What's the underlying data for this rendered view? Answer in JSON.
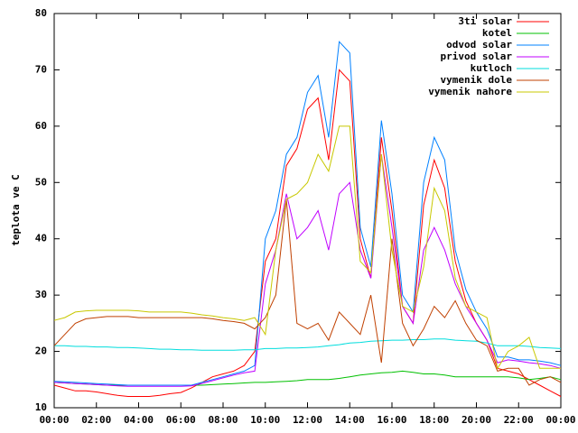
{
  "chart_data": {
    "type": "line",
    "ylabel": "teplota ve C",
    "x": [
      0,
      0.5,
      1,
      1.5,
      2,
      2.5,
      3,
      3.5,
      4,
      4.5,
      5,
      5.5,
      6,
      6.5,
      7,
      7.5,
      8,
      8.5,
      9,
      9.5,
      10,
      10.5,
      11,
      11.5,
      12,
      12.5,
      13,
      13.5,
      14,
      14.5,
      15,
      15.5,
      16,
      16.5,
      17,
      17.5,
      18,
      18.5,
      19,
      19.5,
      20,
      20.5,
      21,
      21.5,
      22,
      22.5,
      23,
      23.5,
      24
    ],
    "xlim": [
      0,
      24
    ],
    "xticks": [
      {
        "value": 0,
        "label": "00:00"
      },
      {
        "value": 2,
        "label": "02:00"
      },
      {
        "value": 4,
        "label": "04:00"
      },
      {
        "value": 6,
        "label": "06:00"
      },
      {
        "value": 8,
        "label": "08:00"
      },
      {
        "value": 10,
        "label": "10:00"
      },
      {
        "value": 12,
        "label": "12:00"
      },
      {
        "value": 14,
        "label": "14:00"
      },
      {
        "value": 16,
        "label": "16:00"
      },
      {
        "value": 18,
        "label": "18:00"
      },
      {
        "value": 20,
        "label": "20:00"
      },
      {
        "value": 22,
        "label": "22:00"
      },
      {
        "value": 24,
        "label": "00:00"
      }
    ],
    "ylim": [
      10,
      80
    ],
    "yticks": [
      10,
      20,
      30,
      40,
      50,
      60,
      70,
      80
    ],
    "legend": "top-right",
    "series": [
      {
        "name": "3ti solar",
        "color": "#ff0000",
        "values": [
          14,
          13.5,
          13,
          13,
          12.8,
          12.5,
          12.2,
          12,
          12,
          12,
          12.2,
          12.5,
          12.7,
          13.5,
          14.5,
          15.5,
          16,
          16.5,
          17.5,
          20,
          36,
          40,
          53,
          56,
          63,
          65,
          54,
          70,
          68,
          40,
          33,
          58,
          45,
          28,
          25,
          46,
          54,
          49,
          36,
          29,
          25,
          22,
          17,
          16.5,
          16,
          15,
          14,
          13,
          12
        ]
      },
      {
        "name": "kotel",
        "color": "#00c000",
        "values": [
          14.5,
          14.4,
          14.3,
          14.2,
          14.1,
          14,
          14,
          14,
          14,
          14,
          14,
          14,
          14,
          14,
          14,
          14.1,
          14.2,
          14.3,
          14.4,
          14.5,
          14.5,
          14.6,
          14.7,
          14.8,
          15,
          15,
          15,
          15.2,
          15.5,
          15.8,
          16,
          16.2,
          16.3,
          16.5,
          16.3,
          16,
          16,
          15.8,
          15.5,
          15.5,
          15.5,
          15.5,
          15.5,
          15.5,
          15.3,
          15,
          15.2,
          15.5,
          15
        ]
      },
      {
        "name": "odvod solar",
        "color": "#0080ff",
        "values": [
          14.7,
          14.6,
          14.5,
          14.4,
          14.3,
          14.2,
          14.1,
          14,
          14,
          14,
          14,
          14,
          14,
          14,
          14.5,
          15,
          15.5,
          16,
          16.5,
          17.5,
          40,
          45,
          55,
          58,
          66,
          69,
          58,
          75,
          73,
          42,
          35,
          61,
          48,
          30,
          27,
          50,
          58,
          54,
          38,
          31,
          27,
          24,
          19,
          19,
          18.5,
          18.5,
          18.3,
          18,
          17.5
        ]
      },
      {
        "name": "privod solar",
        "color": "#c000ff",
        "values": [
          14.5,
          14.4,
          14.3,
          14.2,
          14.1,
          14,
          13.9,
          13.8,
          13.8,
          13.8,
          13.8,
          13.8,
          13.8,
          13.9,
          14.3,
          14.8,
          15.3,
          15.8,
          16.2,
          16.5,
          32,
          38,
          48,
          40,
          42,
          45,
          38,
          48,
          50,
          38,
          33,
          55,
          42,
          28,
          25,
          38,
          42,
          38,
          32,
          28,
          25,
          22,
          18,
          18.5,
          18.3,
          18,
          17.8,
          17.5,
          17
        ]
      },
      {
        "name": "kutloch",
        "color": "#00dddd",
        "values": [
          21,
          21,
          20.9,
          20.9,
          20.8,
          20.8,
          20.7,
          20.7,
          20.6,
          20.5,
          20.4,
          20.4,
          20.3,
          20.3,
          20.2,
          20.2,
          20.2,
          20.2,
          20.3,
          20.3,
          20.5,
          20.5,
          20.6,
          20.6,
          20.7,
          20.8,
          21,
          21.2,
          21.5,
          21.6,
          21.8,
          21.9,
          22,
          22,
          22.1,
          22.1,
          22.2,
          22.2,
          22,
          21.9,
          21.8,
          21.5,
          21,
          21,
          21,
          20.9,
          20.7,
          20.6,
          20.5
        ]
      },
      {
        "name": "vymenik dole",
        "color": "#c04000",
        "values": [
          21,
          23,
          25,
          25.8,
          26,
          26.2,
          26.2,
          26.2,
          26,
          26,
          26,
          26,
          26,
          26,
          26,
          25.8,
          25.5,
          25.3,
          25,
          24,
          26,
          30,
          47,
          25,
          24,
          25,
          22,
          27,
          25,
          23,
          30,
          18,
          40,
          25,
          21,
          24,
          28,
          26,
          29,
          25,
          22,
          21,
          16.5,
          17,
          17,
          14,
          15,
          15.5,
          14.5
        ]
      },
      {
        "name": "vymenik nahore",
        "color": "#c8c800",
        "values": [
          25.5,
          26,
          27,
          27.2,
          27.3,
          27.3,
          27.3,
          27.3,
          27.2,
          27,
          27,
          27,
          27,
          26.8,
          26.5,
          26.3,
          26,
          25.8,
          25.5,
          26,
          23,
          38,
          47,
          48,
          50,
          55,
          52,
          60,
          60,
          36,
          34,
          55,
          38,
          28,
          27,
          35,
          49,
          45,
          33,
          28,
          27,
          26,
          17,
          20,
          21,
          22.5,
          17,
          17,
          17
        ]
      }
    ]
  }
}
